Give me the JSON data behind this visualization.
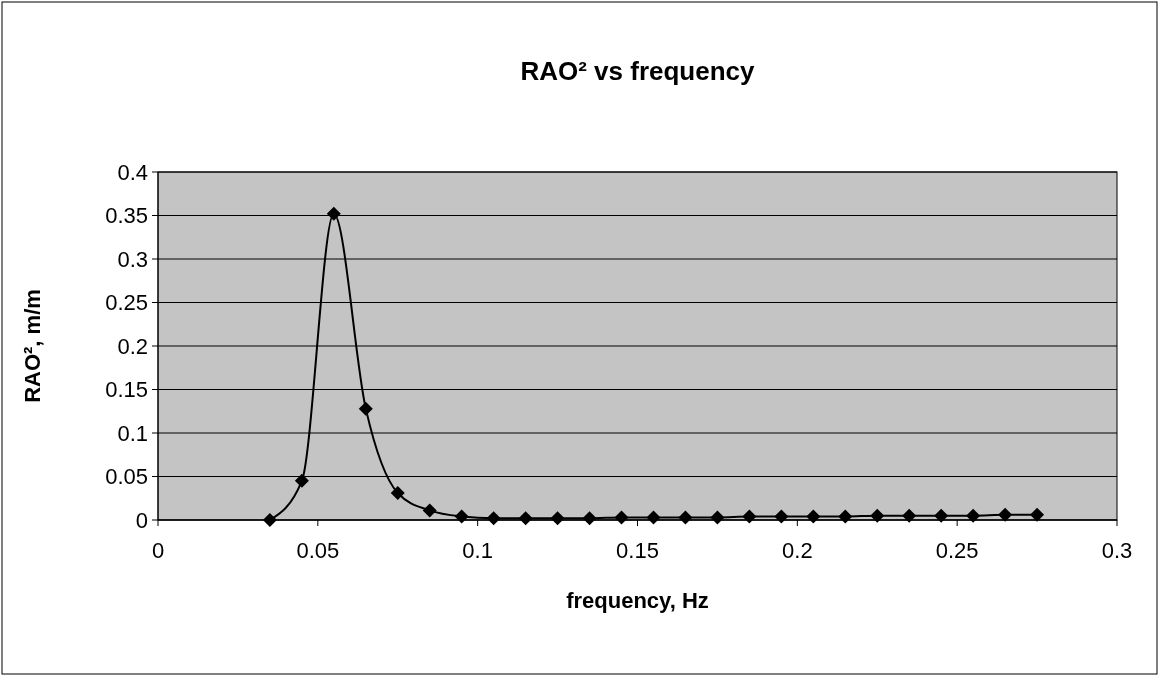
{
  "chart_data": {
    "type": "line",
    "title": "RAO² vs frequency",
    "xlabel": "frequency, Hz",
    "ylabel": "RAO², m/m",
    "x": [
      0.035,
      0.045,
      0.055,
      0.065,
      0.075,
      0.085,
      0.095,
      0.105,
      0.115,
      0.125,
      0.135,
      0.145,
      0.155,
      0.165,
      0.175,
      0.185,
      0.195,
      0.205,
      0.215,
      0.225,
      0.235,
      0.245,
      0.255,
      0.265,
      0.275
    ],
    "series": [
      {
        "color": "#000000",
        "values": [
          0,
          0.045,
          0.352,
          0.128,
          0.031,
          0.011,
          0.004,
          0.002,
          0.002,
          0.002,
          0.002,
          0.003,
          0.003,
          0.003,
          0.003,
          0.004,
          0.004,
          0.004,
          0.004,
          0.005,
          0.005,
          0.005,
          0.005,
          0.006,
          0.006
        ]
      }
    ],
    "xlim": [
      0,
      0.3
    ],
    "xticks": [
      0,
      0.05,
      0.1,
      0.15,
      0.2,
      0.25,
      0.3
    ],
    "ylim": [
      0,
      0.4
    ],
    "yticks": [
      0,
      0.05,
      0.1,
      0.15,
      0.2,
      0.25,
      0.3,
      0.35,
      0.4
    ],
    "grid": "y",
    "marker": "diamond",
    "line_style": "solid"
  }
}
